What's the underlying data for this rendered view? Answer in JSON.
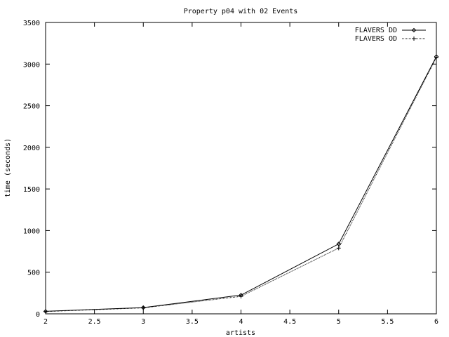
{
  "chart_data": {
    "type": "line",
    "title": "Property p04 with 02 Events",
    "xlabel": "artists",
    "ylabel": "time (seconds)",
    "xlim": [
      2,
      6
    ],
    "ylim": [
      0,
      3500
    ],
    "x_ticks": [
      2,
      2.5,
      3,
      3.5,
      4,
      4.5,
      5,
      5.5,
      6
    ],
    "y_ticks": [
      0,
      500,
      1000,
      1500,
      2000,
      2500,
      3000,
      3500
    ],
    "x_tick_labels": [
      "2",
      "2.5",
      "3",
      "3.5",
      "4",
      "4.5",
      "5",
      "5.5",
      "6"
    ],
    "y_tick_labels": [
      "0",
      "500",
      "1000",
      "1500",
      "2000",
      "2500",
      "3000",
      "3500"
    ],
    "grid": false,
    "legend_position": "top-right",
    "series": [
      {
        "name": "FLAVERS DD",
        "color": "#000000",
        "line_style": "solid",
        "marker": "diamond",
        "x": [
          2,
          3,
          4,
          5,
          6
        ],
        "y": [
          30,
          75,
          225,
          840,
          3090
        ]
      },
      {
        "name": "FLAVERS OD",
        "color": "#000000",
        "line_style": "dotted",
        "marker": "plus",
        "x": [
          2,
          3,
          4,
          5,
          6
        ],
        "y": [
          28,
          72,
          210,
          790,
          3080
        ]
      }
    ]
  }
}
